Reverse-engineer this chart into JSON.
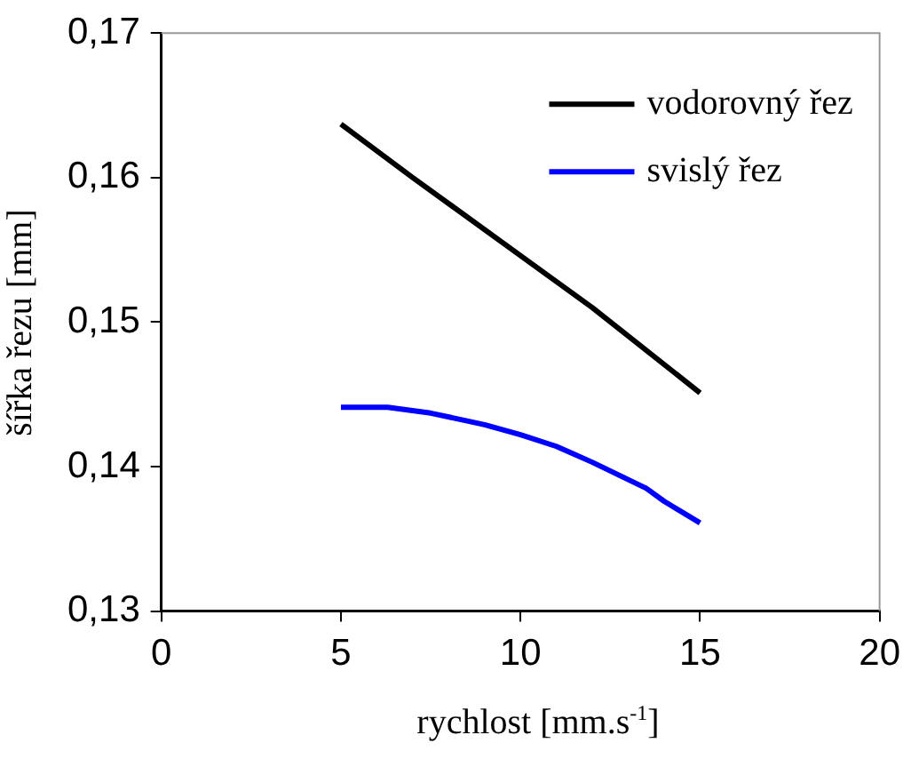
{
  "chart_data": {
    "type": "line",
    "xlabel": "rychlost [mm.s$^{-1}$]",
    "ylabel": "šířka řezu [mm]",
    "xlim": [
      0,
      20
    ],
    "xticks": [
      0,
      5,
      10,
      15,
      20
    ],
    "ylim": [
      0.13,
      0.17
    ],
    "yticks": [
      {
        "value": 0.13,
        "label": "0,13"
      },
      {
        "value": 0.14,
        "label": "0,14"
      },
      {
        "value": 0.15,
        "label": "0,15"
      },
      {
        "value": 0.16,
        "label": "0,16"
      },
      {
        "value": 0.17,
        "label": "0,17"
      }
    ],
    "grid": false,
    "legend": "top right",
    "marker": "none",
    "line_style": "solid",
    "series": [
      {
        "name": "vodorovný řez",
        "color": "#000000",
        "x": [
          5,
          7,
          10,
          12,
          15
        ],
        "values": [
          0.1637,
          0.16,
          0.1546,
          0.151,
          0.1451
        ]
      },
      {
        "name": "svislý řez",
        "color": "#0000ff",
        "x": [
          5,
          6.3,
          7.5,
          9,
          10,
          11,
          12,
          13.5,
          14,
          15
        ],
        "values": [
          0.1441,
          0.1441,
          0.1437,
          0.1429,
          0.1422,
          0.1414,
          0.1403,
          0.1385,
          0.1376,
          0.1361
        ]
      }
    ]
  }
}
